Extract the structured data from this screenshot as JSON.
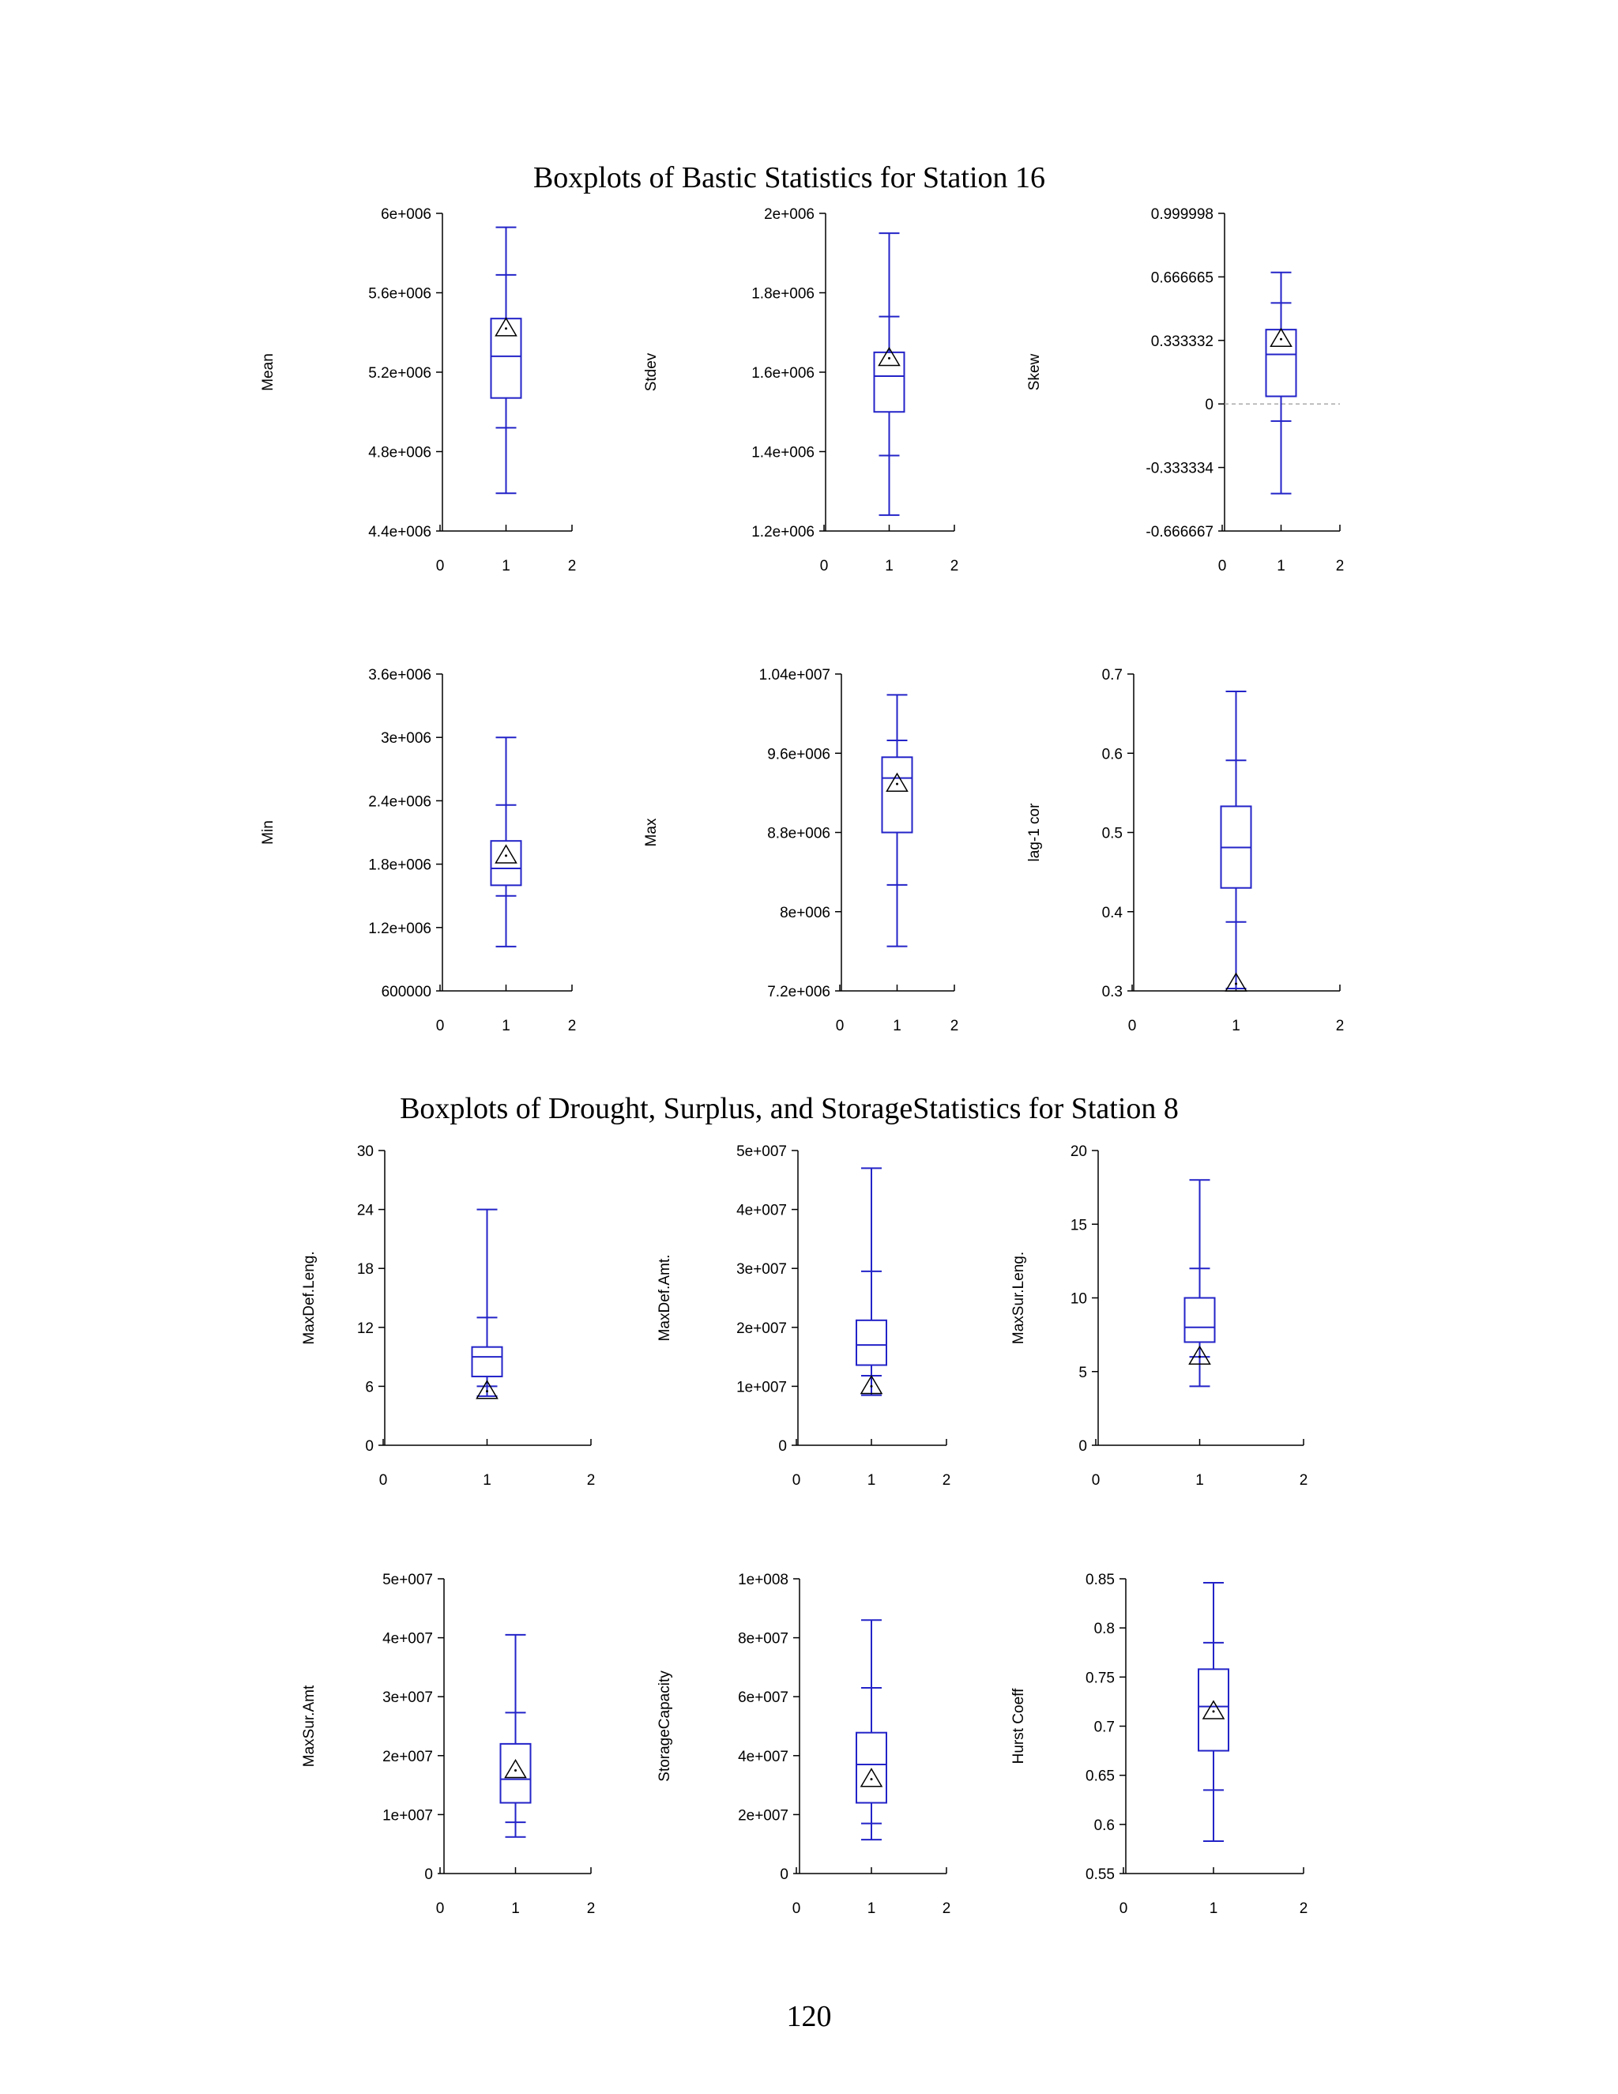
{
  "titles": {
    "section1": "Boxplots of Bastic Statistics for Station 16",
    "section2": "Boxplots of Drought, Surplus, and StorageStatistics for Station 8"
  },
  "page_number": "120",
  "colors": {
    "box": "#2323c8",
    "axis": "#000000",
    "zero_line": "#aaaaaa"
  },
  "chart_data": [
    {
      "type": "box",
      "ylabel": "Mean",
      "ylim": [
        4400000,
        6000000
      ],
      "yticks": [
        {
          "v": 4400000,
          "label": "4.4e+006"
        },
        {
          "v": 4800000,
          "label": "4.8e+006"
        },
        {
          "v": 5200000,
          "label": "5.2e+006"
        },
        {
          "v": 5600000,
          "label": "5.6e+006"
        },
        {
          "v": 6000000,
          "label": "6e+006"
        }
      ],
      "xticks": [
        "0",
        "1",
        "2"
      ],
      "box": {
        "whisker_low": 4590000,
        "q5": 4920000,
        "q1": 5070000,
        "median": 5280000,
        "q3": 5470000,
        "q95": 5690000,
        "whisker_high": 5930000,
        "observed": 5420000
      }
    },
    {
      "type": "box",
      "ylabel": "Stdev",
      "ylim": [
        1200000,
        2000000
      ],
      "yticks": [
        {
          "v": 1200000,
          "label": "1.2e+006"
        },
        {
          "v": 1400000,
          "label": "1.4e+006"
        },
        {
          "v": 1600000,
          "label": "1.6e+006"
        },
        {
          "v": 1800000,
          "label": "1.8e+006"
        },
        {
          "v": 2000000,
          "label": "2e+006"
        }
      ],
      "xticks": [
        "0",
        "1",
        "2"
      ],
      "box": {
        "whisker_low": 1240000,
        "q5": 1390000,
        "q1": 1500000,
        "median": 1590000,
        "q3": 1650000,
        "q95": 1740000,
        "whisker_high": 1950000,
        "observed": 1635000
      }
    },
    {
      "type": "box",
      "ylabel": "Skew",
      "ylim": [
        -0.666667,
        0.999998
      ],
      "yticks": [
        {
          "v": -0.666667,
          "label": "-0.666667"
        },
        {
          "v": -0.333334,
          "label": "-0.333334"
        },
        {
          "v": 0,
          "label": "0"
        },
        {
          "v": 0.333332,
          "label": "0.333332"
        },
        {
          "v": 0.666665,
          "label": "0.666665"
        },
        {
          "v": 0.999998,
          "label": "0.999998"
        }
      ],
      "xticks": [
        "0",
        "1",
        "2"
      ],
      "zero_line": true,
      "box": {
        "whisker_low": -0.47,
        "q5": -0.09,
        "q1": 0.04,
        "median": 0.26,
        "q3": 0.39,
        "q95": 0.53,
        "whisker_high": 0.69,
        "observed": 0.34
      }
    },
    {
      "type": "box",
      "ylabel": "Min",
      "ylim": [
        600000,
        3600000
      ],
      "yticks": [
        {
          "v": 600000,
          "label": "600000"
        },
        {
          "v": 1200000,
          "label": "1.2e+006"
        },
        {
          "v": 1800000,
          "label": "1.8e+006"
        },
        {
          "v": 2400000,
          "label": "2.4e+006"
        },
        {
          "v": 3000000,
          "label": "3e+006"
        },
        {
          "v": 3600000,
          "label": "3.6e+006"
        }
      ],
      "xticks": [
        "0",
        "1",
        "2"
      ],
      "box": {
        "whisker_low": 1020000,
        "q5": 1500000,
        "q1": 1600000,
        "median": 1760000,
        "q3": 2020000,
        "q95": 2360000,
        "whisker_high": 3000000,
        "observed": 1880000
      }
    },
    {
      "type": "box",
      "ylabel": "Max",
      "ylim": [
        7200000,
        10400000
      ],
      "yticks": [
        {
          "v": 7200000,
          "label": "7.2e+006"
        },
        {
          "v": 8000000,
          "label": "8e+006"
        },
        {
          "v": 8800000,
          "label": "8.8e+006"
        },
        {
          "v": 9600000,
          "label": "9.6e+006"
        },
        {
          "v": 10400000,
          "label": "1.04e+007"
        }
      ],
      "xticks": [
        "0",
        "1",
        "2"
      ],
      "box": {
        "whisker_low": 7650000,
        "q5": 8270000,
        "q1": 8800000,
        "median": 9350000,
        "q3": 9560000,
        "q95": 9730000,
        "whisker_high": 10190000,
        "observed": 9290000
      }
    },
    {
      "type": "box",
      "ylabel": "lag-1 cor",
      "ylim": [
        0.3,
        0.7
      ],
      "yticks": [
        {
          "v": 0.3,
          "label": "0.3"
        },
        {
          "v": 0.4,
          "label": "0.4"
        },
        {
          "v": 0.5,
          "label": "0.5"
        },
        {
          "v": 0.6,
          "label": "0.6"
        },
        {
          "v": 0.7,
          "label": "0.7"
        }
      ],
      "xticks": [
        "0",
        "1",
        "2"
      ],
      "box": {
        "whisker_low": 0.303,
        "q5": 0.387,
        "q1": 0.43,
        "median": 0.481,
        "q3": 0.533,
        "q95": 0.591,
        "whisker_high": 0.678,
        "observed": 0.309
      }
    },
    {
      "type": "box",
      "ylabel": "MaxDef.Leng.",
      "ylim": [
        0,
        30
      ],
      "yticks": [
        {
          "v": 0,
          "label": "0"
        },
        {
          "v": 6,
          "label": "6"
        },
        {
          "v": 12,
          "label": "12"
        },
        {
          "v": 18,
          "label": "18"
        },
        {
          "v": 24,
          "label": "24"
        },
        {
          "v": 30,
          "label": "30"
        }
      ],
      "xticks": [
        "0",
        "1",
        "2"
      ],
      "box": {
        "whisker_low": 5,
        "q5": 6,
        "q1": 7,
        "median": 9,
        "q3": 10,
        "q95": 13,
        "whisker_high": 24,
        "observed": 5.5
      }
    },
    {
      "type": "box",
      "ylabel": "MaxDef.Amt.",
      "ylim": [
        0,
        50000000
      ],
      "yticks": [
        {
          "v": 0,
          "label": "0"
        },
        {
          "v": 10000000,
          "label": "1e+007"
        },
        {
          "v": 20000000,
          "label": "2e+007"
        },
        {
          "v": 30000000,
          "label": "3e+007"
        },
        {
          "v": 40000000,
          "label": "4e+007"
        },
        {
          "v": 50000000,
          "label": "5e+007"
        }
      ],
      "xticks": [
        "0",
        "1",
        "2"
      ],
      "box": {
        "whisker_low": 8500000,
        "q5": 11800000,
        "q1": 13600000,
        "median": 17000000,
        "q3": 21200000,
        "q95": 29500000,
        "whisker_high": 47000000,
        "observed": 10000000
      }
    },
    {
      "type": "box",
      "ylabel": "MaxSur.Leng.",
      "ylim": [
        0,
        20
      ],
      "yticks": [
        {
          "v": 0,
          "label": "0"
        },
        {
          "v": 5,
          "label": "5"
        },
        {
          "v": 10,
          "label": "10"
        },
        {
          "v": 15,
          "label": "15"
        },
        {
          "v": 20,
          "label": "20"
        }
      ],
      "xticks": [
        "0",
        "1",
        "2"
      ],
      "box": {
        "whisker_low": 4,
        "q5": 6,
        "q1": 7,
        "median": 8,
        "q3": 10,
        "q95": 12,
        "whisker_high": 18,
        "observed": 6
      }
    },
    {
      "type": "box",
      "ylabel": "MaxSur.Amt",
      "ylim": [
        0,
        50000000
      ],
      "yticks": [
        {
          "v": 0,
          "label": "0"
        },
        {
          "v": 10000000,
          "label": "1e+007"
        },
        {
          "v": 20000000,
          "label": "2e+007"
        },
        {
          "v": 30000000,
          "label": "3e+007"
        },
        {
          "v": 40000000,
          "label": "4e+007"
        },
        {
          "v": 50000000,
          "label": "5e+007"
        }
      ],
      "xticks": [
        "0",
        "1",
        "2"
      ],
      "box": {
        "whisker_low": 6200000,
        "q5": 8700000,
        "q1": 12000000,
        "median": 16000000,
        "q3": 22000000,
        "q95": 27300000,
        "whisker_high": 40500000,
        "observed": 17500000
      }
    },
    {
      "type": "box",
      "ylabel": "StorageCapacity",
      "ylim": [
        0,
        100000000
      ],
      "yticks": [
        {
          "v": 0,
          "label": "0"
        },
        {
          "v": 20000000,
          "label": "2e+007"
        },
        {
          "v": 40000000,
          "label": "4e+007"
        },
        {
          "v": 60000000,
          "label": "6e+007"
        },
        {
          "v": 80000000,
          "label": "8e+007"
        },
        {
          "v": 100000000,
          "label": "1e+008"
        }
      ],
      "xticks": [
        "0",
        "1",
        "2"
      ],
      "box": {
        "whisker_low": 11500000,
        "q5": 17000000,
        "q1": 24000000,
        "median": 37000000,
        "q3": 47800000,
        "q95": 63000000,
        "whisker_high": 86000000,
        "observed": 32000000
      }
    },
    {
      "type": "box",
      "ylabel": "Hurst Coeff",
      "ylim": [
        0.55,
        0.85
      ],
      "yticks": [
        {
          "v": 0.55,
          "label": "0.55"
        },
        {
          "v": 0.6,
          "label": "0.6"
        },
        {
          "v": 0.65,
          "label": "0.65"
        },
        {
          "v": 0.7,
          "label": "0.7"
        },
        {
          "v": 0.75,
          "label": "0.75"
        },
        {
          "v": 0.8,
          "label": "0.8"
        },
        {
          "v": 0.85,
          "label": "0.85"
        }
      ],
      "xticks": [
        "0",
        "1",
        "2"
      ],
      "box": {
        "whisker_low": 0.583,
        "q5": 0.635,
        "q1": 0.675,
        "median": 0.72,
        "q3": 0.758,
        "q95": 0.785,
        "whisker_high": 0.846,
        "observed": 0.715
      }
    }
  ]
}
